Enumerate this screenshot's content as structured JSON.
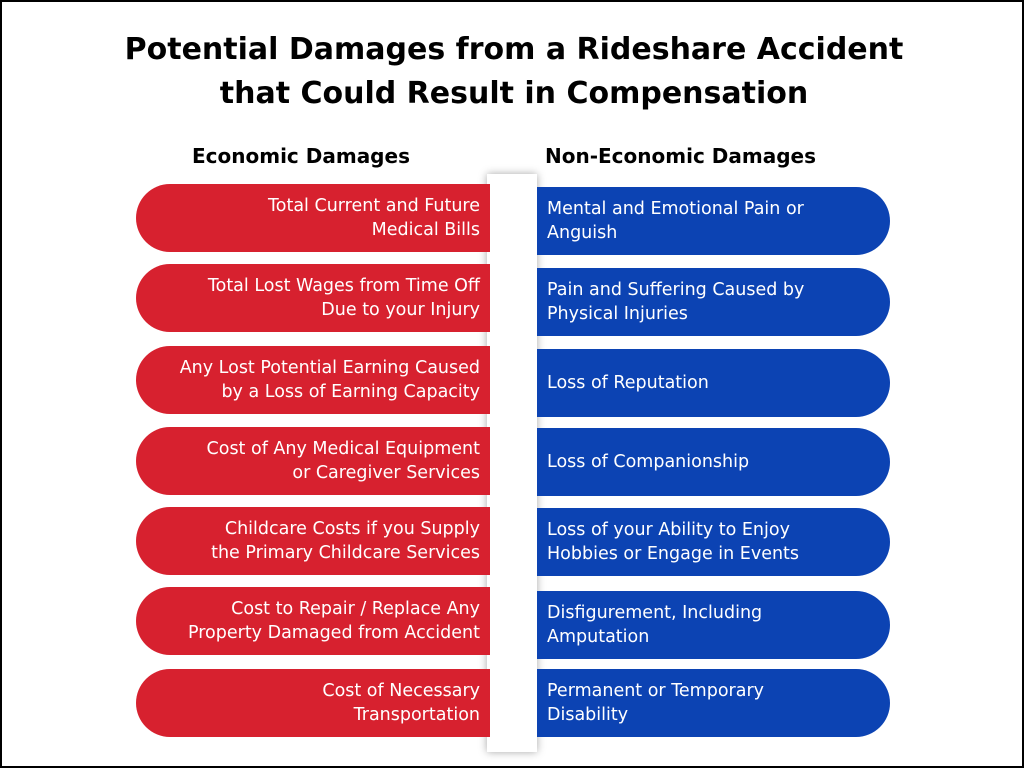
{
  "title": "Potential Damages from a Rideshare Accident\nthat Could Result in Compensation",
  "economic": {
    "heading": "Economic Damages",
    "items": [
      "Total Current and Future\nMedical Bills",
      "Total Lost Wages from Time Off\nDue to your Injury",
      "Any Lost Potential Earning Caused\nby a Loss of Earning Capacity",
      "Cost of Any Medical Equipment\nor Caregiver Services",
      "Childcare Costs if you Supply\nthe Primary Childcare Services",
      "Cost to Repair / Replace Any\nProperty Damaged from  Accident",
      "Cost of Necessary\nTransportation"
    ]
  },
  "non_economic": {
    "heading": "Non-Economic Damages",
    "items": [
      "Mental and Emotional Pain or\nAnguish",
      "Pain and Suffering Caused by\nPhysical Injuries",
      "Loss of Reputation",
      "Loss of Companionship",
      "Loss of your Ability to Enjoy\nHobbies or Engage in Events",
      "Disfigurement, Including\nAmputation",
      "Permanent or Temporary\nDisability"
    ]
  },
  "colors": {
    "economic": "#d7212f",
    "non_economic": "#0c43b3"
  }
}
